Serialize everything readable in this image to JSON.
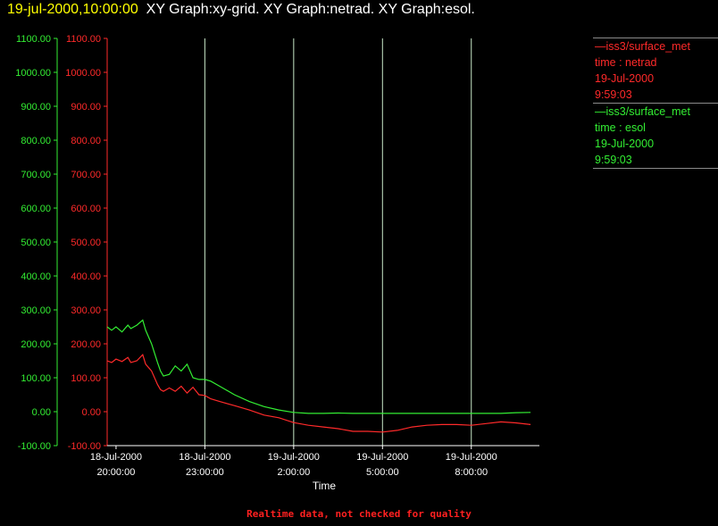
{
  "header": {
    "timestamp": "19-jul-2000,10:00:00",
    "graph_titles": "XY Graph:xy-grid.  XY Graph:netrad.  XY Graph:esol."
  },
  "legend": {
    "entries": [
      {
        "source": "—iss3/surface_met",
        "field": "time : netrad",
        "date": "19-Jul-2000",
        "time": "9:59:03",
        "color": "#ff2a2a"
      },
      {
        "source": "—iss3/surface_met",
        "field": "time : esol",
        "date": "19-Jul-2000",
        "time": "9:59:03",
        "color": "#33ee33"
      }
    ]
  },
  "footer": {
    "note": "Realtime data, not checked for quality"
  },
  "chart_data": {
    "type": "line",
    "xlabel": "Time",
    "x_ticks": [
      {
        "date": "18-Jul-2000",
        "time": "20:00:00",
        "hours": 0
      },
      {
        "date": "18-Jul-2000",
        "time": "23:00:00",
        "hours": 3
      },
      {
        "date": "19-Jul-2000",
        "time": "2:00:00",
        "hours": 6
      },
      {
        "date": "19-Jul-2000",
        "time": "5:00:00",
        "hours": 9
      },
      {
        "date": "19-Jul-2000",
        "time": "8:00:00",
        "hours": 12
      }
    ],
    "xlim_hours": [
      -0.3,
      14.3
    ],
    "y_ticks": [
      "1100.00",
      "1000.00",
      "900.00",
      "800.00",
      "700.00",
      "600.00",
      "500.00",
      "400.00",
      "300.00",
      "200.00",
      "100.00",
      "0.00",
      "-100.00"
    ],
    "ylim": [
      -100,
      1100
    ],
    "grid": "vertical lines at x ticks",
    "series": [
      {
        "name": "netrad",
        "color": "#ff2a2a",
        "x": [
          -0.3,
          -0.15,
          0,
          0.2,
          0.4,
          0.5,
          0.7,
          0.9,
          1.0,
          1.2,
          1.4,
          1.5,
          1.6,
          1.8,
          2.0,
          2.2,
          2.4,
          2.6,
          2.8,
          3.0,
          3.2,
          3.5,
          4.0,
          4.5,
          5.0,
          5.5,
          6.0,
          6.5,
          7.0,
          7.5,
          8.0,
          8.5,
          9.0,
          9.5,
          10.0,
          10.5,
          11.0,
          11.5,
          12.0,
          12.5,
          13.0,
          13.5,
          14.0
        ],
        "values": [
          150,
          145,
          155,
          148,
          160,
          145,
          150,
          168,
          140,
          120,
          80,
          65,
          60,
          70,
          60,
          75,
          55,
          72,
          50,
          48,
          38,
          30,
          18,
          5,
          -10,
          -18,
          -32,
          -40,
          -45,
          -50,
          -58,
          -58,
          -60,
          -55,
          -45,
          -40,
          -38,
          -38,
          -40,
          -35,
          -30,
          -33,
          -38
        ]
      },
      {
        "name": "esol",
        "color": "#33ee33",
        "x": [
          -0.3,
          -0.15,
          0,
          0.2,
          0.4,
          0.5,
          0.7,
          0.9,
          1.0,
          1.2,
          1.4,
          1.5,
          1.6,
          1.8,
          2.0,
          2.2,
          2.4,
          2.6,
          2.8,
          3.0,
          3.2,
          3.5,
          4.0,
          4.5,
          5.0,
          5.5,
          6.0,
          6.5,
          7.0,
          7.5,
          8.0,
          8.5,
          9.0,
          9.5,
          10.0,
          10.5,
          11.0,
          11.5,
          12.0,
          12.5,
          13.0,
          13.5,
          14.0
        ],
        "values": [
          250,
          240,
          250,
          235,
          255,
          245,
          255,
          270,
          240,
          200,
          145,
          120,
          105,
          110,
          135,
          120,
          140,
          100,
          95,
          95,
          90,
          75,
          50,
          30,
          15,
          5,
          -2,
          -5,
          -5,
          -4,
          -5,
          -5,
          -5,
          -5,
          -5,
          -5,
          -5,
          -5,
          -5,
          -5,
          -5,
          -3,
          -2
        ]
      }
    ]
  }
}
